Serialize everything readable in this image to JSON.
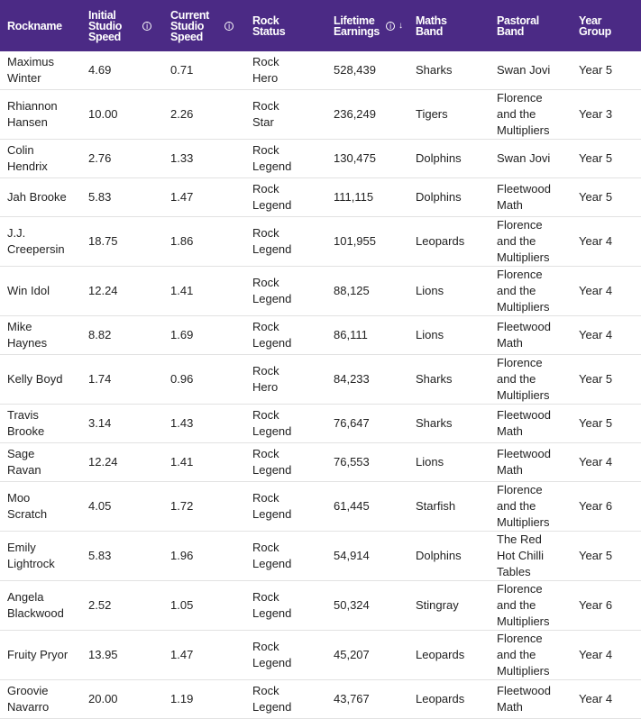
{
  "headers": [
    "Rockname",
    "Initial Studio Speed",
    "Current Studio Speed",
    "Rock Status",
    "Lifetime Earnings",
    "Maths Band",
    "Pastoral Band",
    "Year Group"
  ],
  "rows": [
    [
      "Maximus Winter",
      "4.69",
      "0.71",
      "Rock Hero",
      "528,439",
      "Sharks",
      "Swan Jovi",
      "Year 5"
    ],
    [
      "Rhiannon Hansen",
      "10.00",
      "2.26",
      "Rock Star",
      "236,249",
      "Tigers",
      "Florence and the Multipliers",
      "Year 3"
    ],
    [
      "Colin Hendrix",
      "2.76",
      "1.33",
      "Rock Legend",
      "130,475",
      "Dolphins",
      "Swan Jovi",
      "Year 5"
    ],
    [
      "Jah Brooke",
      "5.83",
      "1.47",
      "Rock Legend",
      "111,115",
      "Dolphins",
      "Fleetwood Math",
      "Year 5"
    ],
    [
      "J.J. Creepersin",
      "18.75",
      "1.86",
      "Rock Legend",
      "101,955",
      "Leopards",
      "Florence and the Multipliers",
      "Year 4"
    ],
    [
      "Win Idol",
      "12.24",
      "1.41",
      "Rock Legend",
      "88,125",
      "Lions",
      "Florence and the Multipliers",
      "Year 4"
    ],
    [
      "Mike Haynes",
      "8.82",
      "1.69",
      "Rock Legend",
      "86,111",
      "Lions",
      "Fleetwood Math",
      "Year 4"
    ],
    [
      "Kelly Boyd",
      "1.74",
      "0.96",
      "Rock Hero",
      "84,233",
      "Sharks",
      "Florence and the Multipliers",
      "Year 5"
    ],
    [
      "Travis Brooke",
      "3.14",
      "1.43",
      "Rock Legend",
      "76,647",
      "Sharks",
      "Fleetwood Math",
      "Year 5"
    ],
    [
      "Sage Ravan",
      "12.24",
      "1.41",
      "Rock Legend",
      "76,553",
      "Lions",
      "Fleetwood Math",
      "Year 4"
    ],
    [
      "Moo Scratch",
      "4.05",
      "1.72",
      "Rock Legend",
      "61,445",
      "Starfish",
      "Florence and the Multipliers",
      "Year 6"
    ],
    [
      "Emily Lightrock",
      "5.83",
      "1.96",
      "Rock Legend",
      "54,914",
      "Dolphins",
      "The Red Hot Chilli Tables",
      "Year 5"
    ],
    [
      "Angela Blackwood",
      "2.52",
      "1.05",
      "Rock Legend",
      "50,324",
      "Stingray",
      "Florence and the Multipliers",
      "Year 6"
    ],
    [
      "Fruity Pryor",
      "13.95",
      "1.47",
      "Rock Legend",
      "45,207",
      "Leopards",
      "Florence and the Multipliers",
      "Year 4"
    ],
    [
      "Groovie Navarro",
      "20.00",
      "1.19",
      "Rock Legend",
      "43,767",
      "Leopards",
      "Fleetwood Math",
      "Year 4"
    ]
  ],
  "colors": {
    "header": "#4b2a85"
  },
  "sorted_column": "Lifetime Earnings",
  "sort_direction": "descending"
}
